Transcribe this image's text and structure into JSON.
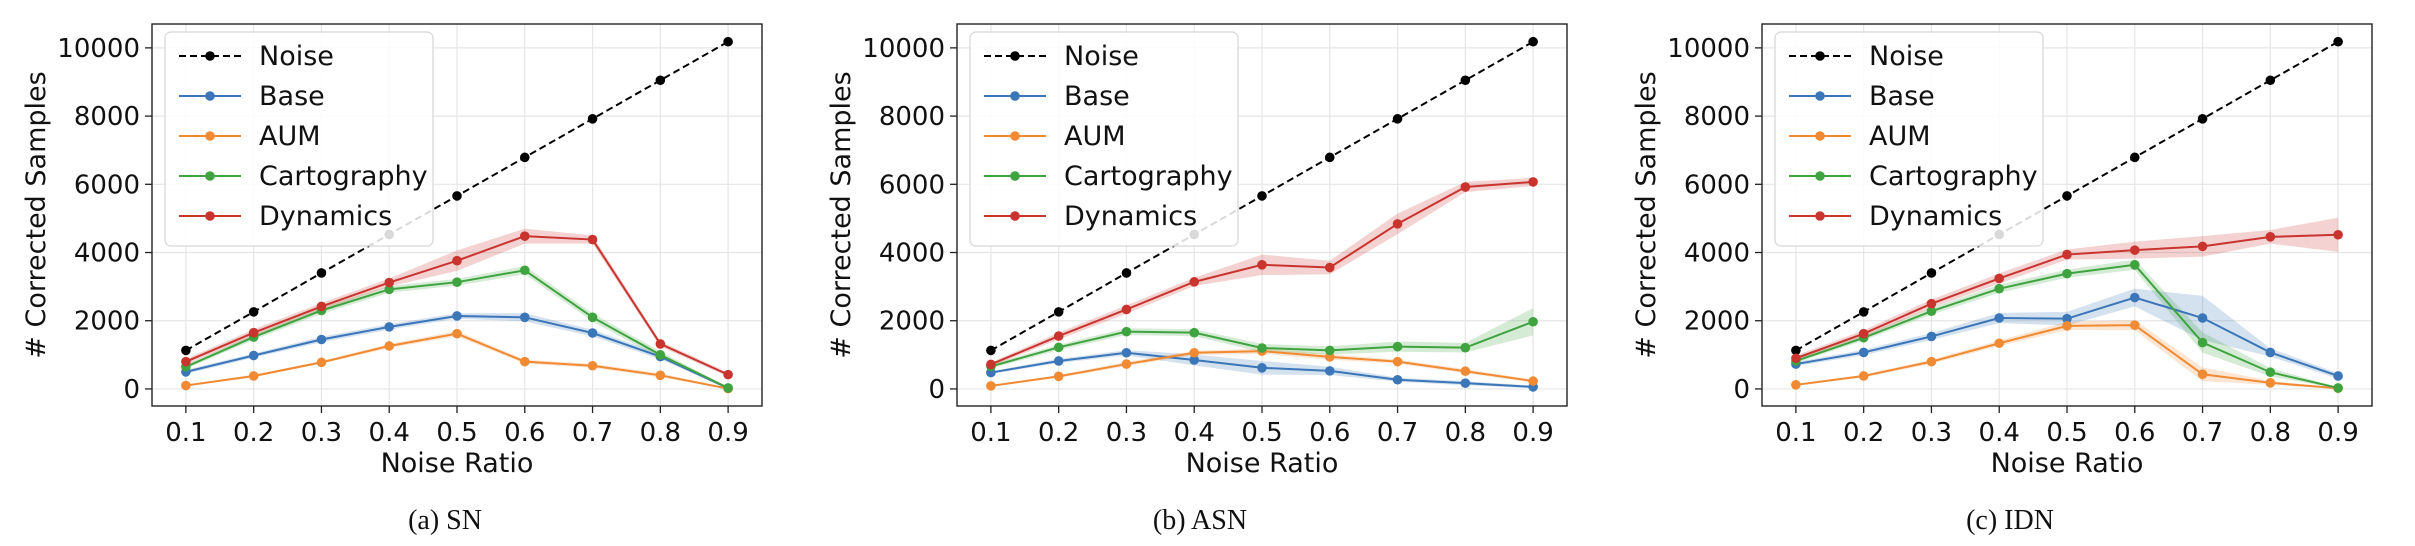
{
  "chart_data": [
    {
      "type": "line",
      "caption_label": "(a)",
      "caption_text": "SN",
      "xlabel": "Noise Ratio",
      "ylabel": "# Corrected Samples",
      "x": [
        0.1,
        0.2,
        0.3,
        0.4,
        0.5,
        0.6,
        0.7,
        0.8,
        0.9
      ],
      "xlim": [
        0.05,
        0.95
      ],
      "ylim": [
        -500,
        10700
      ],
      "yticks": [
        0,
        2000,
        4000,
        6000,
        8000,
        10000
      ],
      "grid": true,
      "legend_position": "top-left",
      "series": [
        {
          "name": "Noise",
          "color": "#000000",
          "dashed": true,
          "values": [
            1130,
            2260,
            3400,
            4530,
            5660,
            6790,
            7920,
            9050,
            10180
          ],
          "band": [
            0,
            0,
            0,
            0,
            0,
            0,
            0,
            0,
            0
          ]
        },
        {
          "name": "Base",
          "color": "#3a76b8",
          "dashed": false,
          "values": [
            500,
            980,
            1450,
            1820,
            2140,
            2100,
            1640,
            950,
            20
          ],
          "band": [
            60,
            60,
            80,
            80,
            80,
            120,
            100,
            80,
            20
          ]
        },
        {
          "name": "AUM",
          "color": "#f08a33",
          "dashed": false,
          "values": [
            100,
            380,
            780,
            1260,
            1620,
            800,
            680,
            400,
            10
          ],
          "band": [
            20,
            40,
            40,
            60,
            80,
            60,
            60,
            60,
            10
          ]
        },
        {
          "name": "Cartography",
          "color": "#3fa33f",
          "dashed": false,
          "values": [
            650,
            1520,
            2300,
            2920,
            3130,
            3480,
            2100,
            1000,
            30
          ],
          "band": [
            60,
            80,
            100,
            100,
            100,
            120,
            120,
            100,
            20
          ]
        },
        {
          "name": "Dynamics",
          "color": "#c9342f",
          "dashed": false,
          "values": [
            800,
            1650,
            2420,
            3120,
            3760,
            4480,
            4380,
            1320,
            420
          ],
          "band": [
            80,
            100,
            100,
            120,
            300,
            220,
            120,
            80,
            60
          ]
        }
      ]
    },
    {
      "type": "line",
      "caption_label": "(b)",
      "caption_text": "ASN",
      "xlabel": "Noise Ratio",
      "ylabel": "# Corrected Samples",
      "x": [
        0.1,
        0.2,
        0.3,
        0.4,
        0.5,
        0.6,
        0.7,
        0.8,
        0.9
      ],
      "xlim": [
        0.05,
        0.95
      ],
      "ylim": [
        -500,
        10700
      ],
      "yticks": [
        0,
        2000,
        4000,
        6000,
        8000,
        10000
      ],
      "grid": true,
      "legend_position": "top-left",
      "series": [
        {
          "name": "Noise",
          "color": "#000000",
          "dashed": true,
          "values": [
            1130,
            2260,
            3400,
            4530,
            5660,
            6790,
            7920,
            9050,
            10180
          ],
          "band": [
            0,
            0,
            0,
            0,
            0,
            0,
            0,
            0,
            0
          ]
        },
        {
          "name": "Base",
          "color": "#3a76b8",
          "dashed": false,
          "values": [
            480,
            820,
            1060,
            850,
            620,
            530,
            270,
            170,
            60
          ],
          "band": [
            40,
            60,
            80,
            160,
            200,
            120,
            60,
            60,
            40
          ]
        },
        {
          "name": "AUM",
          "color": "#f08a33",
          "dashed": false,
          "values": [
            90,
            370,
            730,
            1060,
            1110,
            940,
            800,
            520,
            230
          ],
          "band": [
            20,
            40,
            60,
            60,
            80,
            80,
            60,
            60,
            40
          ]
        },
        {
          "name": "Cartography",
          "color": "#3fa33f",
          "dashed": false,
          "values": [
            660,
            1220,
            1680,
            1650,
            1200,
            1130,
            1240,
            1210,
            1970
          ],
          "band": [
            60,
            80,
            100,
            100,
            120,
            120,
            150,
            140,
            400
          ]
        },
        {
          "name": "Dynamics",
          "color": "#c9342f",
          "dashed": false,
          "values": [
            720,
            1550,
            2330,
            3140,
            3640,
            3560,
            4840,
            5920,
            6070
          ],
          "band": [
            60,
            100,
            120,
            120,
            300,
            200,
            300,
            150,
            120
          ]
        }
      ]
    },
    {
      "type": "line",
      "caption_label": "(c)",
      "caption_text": "IDN",
      "xlabel": "Noise Ratio",
      "ylabel": "# Corrected Samples",
      "x": [
        0.1,
        0.2,
        0.3,
        0.4,
        0.5,
        0.6,
        0.7,
        0.8,
        0.9
      ],
      "xlim": [
        0.05,
        0.95
      ],
      "ylim": [
        -500,
        10700
      ],
      "yticks": [
        0,
        2000,
        4000,
        6000,
        8000,
        10000
      ],
      "grid": true,
      "legend_position": "top-left",
      "series": [
        {
          "name": "Noise",
          "color": "#000000",
          "dashed": true,
          "values": [
            1130,
            2260,
            3400,
            4530,
            5660,
            6790,
            7920,
            9050,
            10180
          ],
          "band": [
            0,
            0,
            0,
            0,
            0,
            0,
            0,
            0,
            0
          ]
        },
        {
          "name": "Base",
          "color": "#3a76b8",
          "dashed": false,
          "values": [
            730,
            1070,
            1540,
            2080,
            2060,
            2680,
            2080,
            1070,
            380
          ],
          "band": [
            60,
            80,
            100,
            150,
            200,
            260,
            650,
            120,
            80
          ]
        },
        {
          "name": "AUM",
          "color": "#f08a33",
          "dashed": false,
          "values": [
            120,
            380,
            800,
            1340,
            1850,
            1870,
            430,
            180,
            20
          ],
          "band": [
            20,
            40,
            60,
            80,
            120,
            150,
            200,
            60,
            10
          ]
        },
        {
          "name": "Cartography",
          "color": "#3fa33f",
          "dashed": false,
          "values": [
            820,
            1500,
            2280,
            2940,
            3380,
            3640,
            1360,
            490,
            30
          ],
          "band": [
            60,
            80,
            100,
            120,
            120,
            150,
            300,
            120,
            20
          ]
        },
        {
          "name": "Dynamics",
          "color": "#c9342f",
          "dashed": false,
          "values": [
            900,
            1620,
            2500,
            3240,
            3940,
            4070,
            4180,
            4460,
            4520
          ],
          "band": [
            80,
            100,
            120,
            150,
            150,
            250,
            300,
            200,
            500
          ]
        }
      ]
    }
  ]
}
